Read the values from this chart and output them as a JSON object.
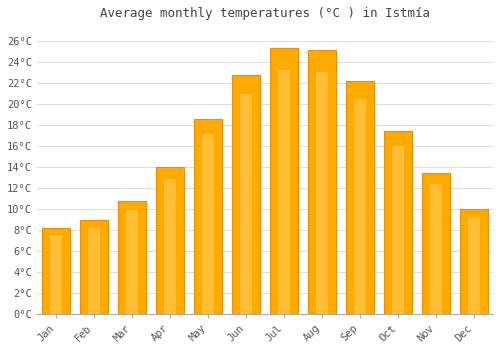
{
  "title": "Average monthly temperatures (°C ) in Istmía",
  "months": [
    "Jan",
    "Feb",
    "Mar",
    "Apr",
    "May",
    "Jun",
    "Jul",
    "Aug",
    "Sep",
    "Oct",
    "Nov",
    "Dec"
  ],
  "values": [
    8.2,
    8.9,
    10.7,
    14.0,
    18.6,
    22.8,
    25.3,
    25.1,
    22.2,
    17.4,
    13.4,
    10.0
  ],
  "bar_color_main": "#FFAA00",
  "bar_color_light": "#FFD060",
  "bar_color_dark": "#E8900A",
  "background_color": "#FFFFFF",
  "grid_color": "#DDDDDD",
  "yticks": [
    0,
    2,
    4,
    6,
    8,
    10,
    12,
    14,
    16,
    18,
    20,
    22,
    24,
    26
  ],
  "ylim": [
    0,
    27.5
  ],
  "title_fontsize": 9,
  "tick_fontsize": 7.5,
  "font_family": "monospace"
}
